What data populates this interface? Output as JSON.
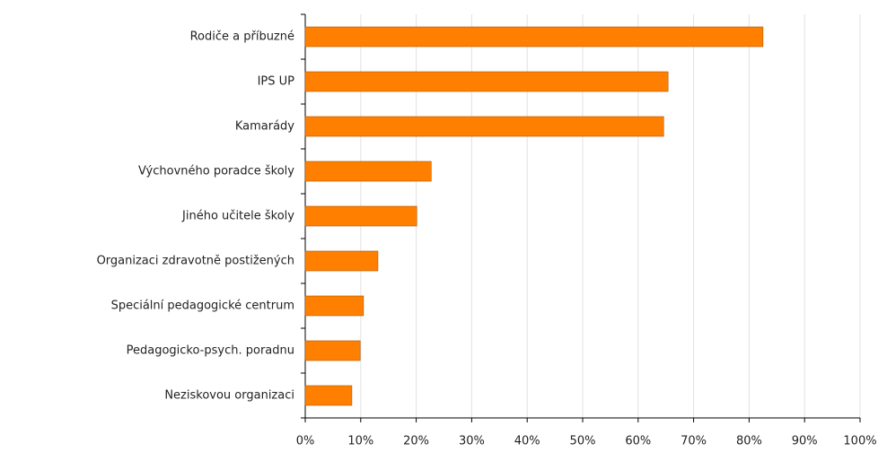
{
  "chart_data": {
    "type": "bar",
    "orientation": "horizontal",
    "categories": [
      "Rodiče a příbuzné",
      "IPS UP",
      "Kamarády",
      "Výchovného poradce školy",
      "Jiného učitele školy",
      "Organizaci zdravotně postižených",
      "Speciální pedagogické centrum",
      "Pedagogicko-psych. poradnu",
      "Neziskovou organizaci"
    ],
    "values": [
      82.5,
      65.4,
      64.6,
      22.7,
      20.1,
      13.1,
      10.5,
      9.9,
      8.4
    ],
    "color": "#ff8000",
    "xlim": [
      0,
      100
    ],
    "xticks": [
      {
        "value": 0,
        "label": "0%"
      },
      {
        "value": 10,
        "label": "10%"
      },
      {
        "value": 20,
        "label": "20%"
      },
      {
        "value": 30,
        "label": "30%"
      },
      {
        "value": 40,
        "label": "40%"
      },
      {
        "value": 50,
        "label": "50%"
      },
      {
        "value": 60,
        "label": "60%"
      },
      {
        "value": 70,
        "label": "70%"
      },
      {
        "value": 80,
        "label": "80%"
      },
      {
        "value": 90,
        "label": "90%"
      },
      {
        "value": 100,
        "label": "100%"
      }
    ],
    "grid": true
  }
}
